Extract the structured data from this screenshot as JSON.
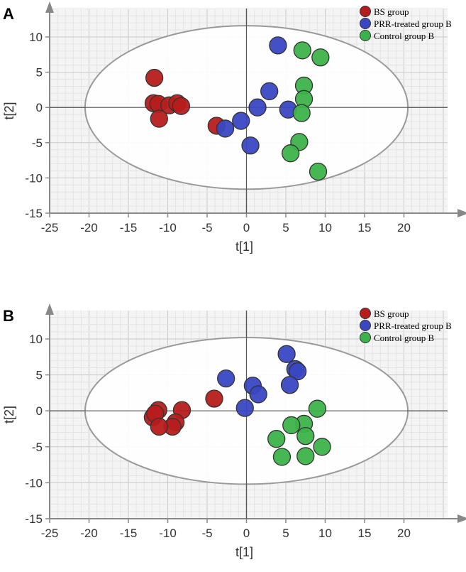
{
  "chart_data": [
    {
      "panel": "A",
      "type": "scatter",
      "title": "",
      "xlabel": "t[1]",
      "ylabel": "t[2]",
      "xlim": [
        -25,
        25
      ],
      "ylim": [
        -15,
        13
      ],
      "xticks": [
        -25,
        -20,
        -15,
        -10,
        -5,
        0,
        5,
        10,
        15,
        20
      ],
      "yticks": [
        -15,
        -10,
        -5,
        0,
        5,
        10
      ],
      "grid": true,
      "ellipse": {
        "cx": 0,
        "cy": 0,
        "rx": 20.5,
        "ry": 11.6
      },
      "legend_position": "top-right",
      "series": [
        {
          "name": "BS group",
          "color": "#b71c1c",
          "points": [
            [
              -11.7,
              4.2
            ],
            [
              -11.8,
              0.6
            ],
            [
              -11.2,
              0.5
            ],
            [
              -9.8,
              0.3
            ],
            [
              -8.8,
              0.6
            ],
            [
              -8.3,
              0.2
            ],
            [
              -11.1,
              -1.6
            ],
            [
              -3.8,
              -2.6
            ]
          ]
        },
        {
          "name": "PRR-treated group B",
          "color": "#3a47c2",
          "points": [
            [
              4.0,
              8.8
            ],
            [
              2.9,
              2.3
            ],
            [
              1.4,
              0.0
            ],
            [
              5.3,
              -0.3
            ],
            [
              -0.7,
              -1.9
            ],
            [
              -2.7,
              -3.0
            ],
            [
              0.5,
              -5.4
            ]
          ]
        },
        {
          "name": "Control group B",
          "color": "#3cb34a",
          "points": [
            [
              7.1,
              8.1
            ],
            [
              9.4,
              7.1
            ],
            [
              7.3,
              3.1
            ],
            [
              7.3,
              1.2
            ],
            [
              7.0,
              -0.8
            ],
            [
              6.7,
              -4.9
            ],
            [
              5.6,
              -6.5
            ],
            [
              9.1,
              -9.1
            ]
          ]
        }
      ]
    },
    {
      "panel": "B",
      "type": "scatter",
      "title": "",
      "xlabel": "t[1]",
      "ylabel": "t[2]",
      "xlim": [
        -25,
        25
      ],
      "ylim": [
        -15,
        13
      ],
      "xticks": [
        -25,
        -20,
        -15,
        -10,
        -5,
        0,
        5,
        10,
        15,
        20
      ],
      "yticks": [
        -15,
        -10,
        -5,
        0,
        5,
        10
      ],
      "grid": true,
      "ellipse": {
        "cx": 0,
        "cy": 0,
        "rx": 20.5,
        "ry": 10.2
      },
      "legend_position": "top-right",
      "series": [
        {
          "name": "BS group",
          "color": "#b71c1c",
          "points": [
            [
              -4.1,
              1.7
            ],
            [
              -8.2,
              0.1
            ],
            [
              -11.2,
              0.1
            ],
            [
              -11.9,
              -0.9
            ],
            [
              -11.6,
              -0.4
            ],
            [
              -9.0,
              -1.6
            ],
            [
              -9.4,
              -2.2
            ],
            [
              -11.1,
              -2.2
            ]
          ]
        },
        {
          "name": "PRR-treated group B",
          "color": "#3a47c2",
          "points": [
            [
              5.1,
              7.9
            ],
            [
              -2.6,
              4.5
            ],
            [
              6.2,
              5.8
            ],
            [
              6.5,
              5.5
            ],
            [
              0.8,
              3.5
            ],
            [
              5.5,
              3.6
            ],
            [
              1.5,
              2.3
            ],
            [
              -0.2,
              0.4
            ]
          ]
        },
        {
          "name": "Control group B",
          "color": "#3cb34a",
          "points": [
            [
              9.0,
              0.3
            ],
            [
              7.3,
              -1.8
            ],
            [
              5.7,
              -2.0
            ],
            [
              7.5,
              -3.5
            ],
            [
              3.8,
              -3.9
            ],
            [
              9.6,
              -5.0
            ],
            [
              4.5,
              -6.4
            ],
            [
              7.5,
              -6.3
            ]
          ]
        }
      ]
    }
  ]
}
